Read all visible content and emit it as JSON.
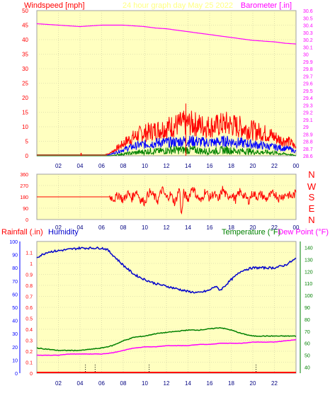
{
  "header": {
    "left_title": "Windspeed [mph]",
    "center_title": "24 hour graph day   May 25 2022",
    "right_title": "Barometer [.in]"
  },
  "colors": {
    "background": "#ffffff",
    "plot_fill": "#ffffc0",
    "grid": "#c8c8a0",
    "wind_title": "#ff0000",
    "date_title": "#ffff80",
    "baro_title": "#ff00ff",
    "wind_speed": "#ff0000",
    "wind_avg": "#0000ff",
    "wind_low": "#008000",
    "barometer": "#ff00ff",
    "direction": "#ff0000",
    "rain": "#ff0000",
    "humidity": "#0000cc",
    "temperature": "#008000",
    "dew_point": "#ff00ff",
    "axis_blue": "#0000ff",
    "axis_green": "#008000"
  },
  "panel_labels": {
    "rainfall": "Rainfall (.in)",
    "humidity": "Humidity",
    "temperature": "Temperature (°F)",
    "dew_point": "Dew Point (°F)"
  },
  "direction_labels": [
    "N",
    "W",
    "S",
    "E",
    "N"
  ],
  "chart_data": [
    {
      "type": "line",
      "title": "24 hour graph day   May 25 2022",
      "x_ticks": [
        "02",
        "04",
        "06",
        "08",
        "10",
        "12",
        "14",
        "16",
        "18",
        "20",
        "22",
        "00"
      ],
      "xlim": [
        0,
        24
      ],
      "left_axis": {
        "label": "Windspeed [mph]",
        "range": [
          0,
          50
        ],
        "ticks": [
          "0",
          "5",
          "10",
          "15",
          "20",
          "25",
          "30",
          "35",
          "40",
          "45",
          "50"
        ]
      },
      "right_axis": {
        "label": "Barometer [.in]",
        "range": [
          28.6,
          30.6
        ],
        "ticks": [
          "28.6",
          "28.7",
          "28.8",
          "28.9",
          "29",
          "29.1",
          "29.2",
          "29.3",
          "29.4",
          "29.5",
          "29.6",
          "29.7",
          "29.8",
          "29.9",
          "30",
          "30.1",
          "30.2",
          "30.3",
          "30.4",
          "30.5",
          "30.6"
        ]
      },
      "series": [
        {
          "name": "Barometer",
          "axis": "right",
          "x": [
            0,
            1,
            2,
            3,
            4,
            5,
            6,
            7,
            8,
            9,
            10,
            11,
            12,
            13,
            14,
            15,
            16,
            17,
            18,
            19,
            20,
            21,
            22,
            23,
            24
          ],
          "y": [
            30.42,
            30.41,
            30.4,
            30.39,
            30.38,
            30.39,
            30.4,
            30.4,
            30.4,
            30.39,
            30.38,
            30.36,
            30.35,
            30.33,
            30.31,
            30.29,
            30.27,
            30.25,
            30.23,
            30.21,
            30.19,
            30.18,
            30.17,
            30.15,
            30.14
          ]
        },
        {
          "name": "Wind gust",
          "axis": "left",
          "x": [
            0,
            6,
            6.8,
            7.5,
            8.5,
            9.5,
            10.5,
            11.5,
            12.5,
            13.5,
            14.5,
            15.5,
            16.5,
            17.5,
            18.5,
            19.5,
            20.5,
            21.5,
            22.5,
            23.5,
            24
          ],
          "y": [
            0,
            0,
            1,
            3,
            6,
            8,
            9,
            10,
            11,
            12,
            12,
            11,
            11,
            12,
            11,
            10,
            9,
            8,
            6,
            5,
            3
          ]
        },
        {
          "name": "Wind average",
          "axis": "left",
          "x": [
            0,
            6,
            6.8,
            7.5,
            8.5,
            9.5,
            10.5,
            11.5,
            12.5,
            13.5,
            14.5,
            15.5,
            16.5,
            17.5,
            18.5,
            19.5,
            20.5,
            21.5,
            22.5,
            23.5,
            24
          ],
          "y": [
            0,
            0,
            0.5,
            1.5,
            3,
            4,
            4.5,
            5,
            5,
            5.5,
            5.5,
            5,
            5,
            5.5,
            5,
            4.5,
            4,
            3.5,
            3,
            2.5,
            1.5
          ]
        },
        {
          "name": "Wind low",
          "axis": "left",
          "x": [
            0,
            6,
            6.8,
            7.5,
            8.5,
            9.5,
            10.5,
            11.5,
            12.5,
            13.5,
            14.5,
            15.5,
            16.5,
            17.5,
            18.5,
            19.5,
            20.5,
            21.5,
            22.5,
            23.5,
            24
          ],
          "y": [
            0,
            0,
            0,
            0.5,
            1,
            1.5,
            2,
            2,
            2.5,
            2.5,
            2.5,
            2,
            2,
            2.5,
            2,
            2,
            1.5,
            1.5,
            1,
            0.5,
            0
          ]
        }
      ],
      "annotations": [
        {
          "x": 4.1,
          "y": 1
        }
      ]
    },
    {
      "type": "line",
      "x_ticks": [
        "02",
        "04",
        "06",
        "08",
        "10",
        "12",
        "14",
        "16",
        "18",
        "20",
        "22",
        "00"
      ],
      "xlim": [
        0,
        24
      ],
      "left_axis": {
        "range": [
          0,
          360
        ],
        "ticks": [
          "0",
          "90",
          "180",
          "270",
          "360"
        ]
      },
      "right_labels": [
        "N",
        "W",
        "S",
        "E",
        "N"
      ],
      "series": [
        {
          "name": "Wind direction",
          "x": [
            0,
            2,
            4,
            6,
            6.8,
            7.2,
            7.6,
            8,
            8.4,
            8.8,
            9.2,
            9.6,
            10,
            10.4,
            10.8,
            11.2,
            11.6,
            12,
            12.4,
            12.8,
            13.2,
            13.4,
            13.6,
            14,
            14.4,
            14.8,
            15.2,
            15.6,
            16,
            16.4,
            16.8,
            17.2,
            17.6,
            18,
            18.4,
            18.8,
            19.2,
            19.6,
            20,
            20.4,
            20.8,
            21.2,
            21.6,
            22,
            22.4,
            22.8,
            23.2,
            23.6,
            24
          ],
          "y": [
            180,
            180,
            180,
            180,
            180,
            165,
            200,
            150,
            210,
            170,
            230,
            160,
            140,
            220,
            190,
            150,
            240,
            170,
            200,
            130,
            250,
            30,
            210,
            160,
            260,
            190,
            140,
            230,
            170,
            210,
            150,
            240,
            180,
            200,
            160,
            220,
            190,
            150,
            210,
            180,
            200,
            160,
            190,
            210,
            170,
            190,
            200,
            180,
            210
          ]
        }
      ]
    },
    {
      "type": "line",
      "x_ticks": [
        "02",
        "04",
        "06",
        "08",
        "10",
        "12",
        "14",
        "16",
        "18",
        "20",
        "22"
      ],
      "xlim": [
        0,
        24
      ],
      "axes": {
        "rainfall": {
          "label": "Rainfall (.in)",
          "range": [
            0,
            1.2
          ],
          "ticks": [
            "0",
            "0.1",
            "0.2",
            "0.3",
            "0.4",
            "0.5",
            "0.6",
            "0.7",
            "0.8",
            "0.9",
            "1",
            "1.1"
          ]
        },
        "humidity": {
          "label": "Humidity",
          "range": [
            0,
            100
          ],
          "ticks": [
            "0",
            "10",
            "20",
            "30",
            "40",
            "50",
            "60",
            "70",
            "80",
            "90",
            "100"
          ]
        },
        "temperature": {
          "label": "Temperature (°F)",
          "range": [
            35,
            145
          ],
          "ticks": [
            "40",
            "50",
            "60",
            "70",
            "80",
            "90",
            "100",
            "110",
            "120",
            "130",
            "140"
          ]
        }
      },
      "series": [
        {
          "name": "Humidity",
          "axis": "humidity",
          "x": [
            0,
            1,
            2,
            3,
            4,
            5,
            6,
            6.5,
            7,
            8,
            9,
            10,
            11,
            12,
            13,
            14,
            15,
            16,
            16.5,
            17,
            18,
            19,
            20,
            21,
            22,
            23,
            24
          ],
          "y": [
            88,
            92,
            93,
            94,
            95,
            95,
            95,
            94,
            90,
            82,
            75,
            71,
            68,
            66,
            64,
            62,
            61,
            63,
            66,
            63,
            71,
            78,
            80,
            80,
            80,
            82,
            87
          ]
        },
        {
          "name": "Temperature",
          "axis": "temperature",
          "x": [
            0,
            1,
            2,
            3,
            4,
            5,
            6,
            7,
            8,
            9,
            10,
            11,
            12,
            13,
            14,
            15,
            16,
            17,
            18,
            19,
            20,
            21,
            22,
            23,
            24
          ],
          "y": [
            56,
            55,
            54,
            54,
            54,
            55,
            56,
            58,
            62,
            65,
            66,
            68,
            69,
            70,
            71,
            71,
            72,
            73,
            71,
            68,
            66,
            66,
            66,
            66,
            66
          ]
        },
        {
          "name": "Dew Point",
          "axis": "temperature",
          "x": [
            0,
            1,
            2,
            3,
            4,
            5,
            6,
            7,
            8,
            9,
            10,
            11,
            12,
            13,
            14,
            15,
            16,
            17,
            18,
            19,
            20,
            21,
            22,
            23,
            24
          ],
          "y": [
            50,
            50,
            50,
            51,
            51,
            51,
            51,
            52,
            54,
            56,
            57,
            57,
            58,
            58,
            58,
            59,
            59,
            60,
            60,
            60,
            61,
            61,
            61,
            62,
            63
          ]
        }
      ],
      "rain_marks": [
        4.5,
        5.4,
        10.4,
        20.3
      ]
    }
  ]
}
